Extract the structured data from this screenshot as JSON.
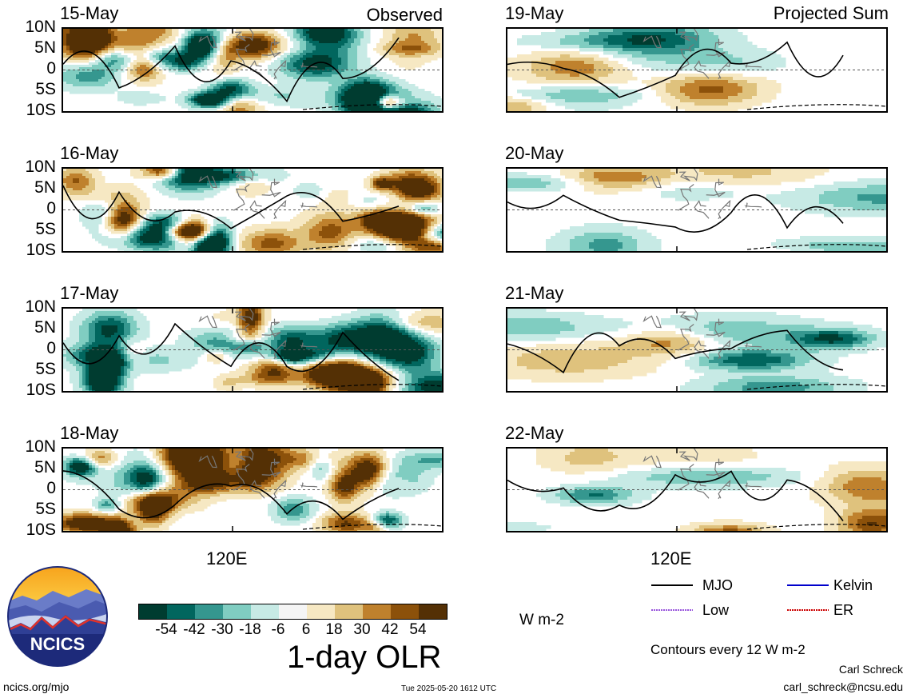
{
  "title": "1-day OLR",
  "units": "W m-2",
  "observed_label": "Observed",
  "projected_label": "Projected Sum",
  "lon_label": "120E",
  "lat_labels": [
    "10N",
    "5N",
    "0",
    "5S",
    "10S"
  ],
  "panels": [
    {
      "date": "15-May",
      "kind": "observed"
    },
    {
      "date": "16-May",
      "kind": "observed"
    },
    {
      "date": "17-May",
      "kind": "observed"
    },
    {
      "date": "18-May",
      "kind": "observed"
    },
    {
      "date": "19-May",
      "kind": "projected"
    },
    {
      "date": "20-May",
      "kind": "projected"
    },
    {
      "date": "21-May",
      "kind": "projected"
    },
    {
      "date": "22-May",
      "kind": "projected"
    }
  ],
  "colorbar": {
    "colors": [
      "#003c30",
      "#01665e",
      "#35978f",
      "#80cdc1",
      "#c7eae5",
      "#f5f5f5",
      "#f6e8c3",
      "#dfc27d",
      "#bf812d",
      "#8c510a",
      "#543005"
    ],
    "ticks": [
      "-54",
      "-42",
      "-30",
      "-18",
      "-6",
      "6",
      "18",
      "30",
      "42",
      "54"
    ]
  },
  "legend": [
    {
      "label": "MJO",
      "color": "#000000"
    },
    {
      "label": "Kelvin",
      "color": "#0000cc"
    },
    {
      "label": "Low",
      "color": "#9955dd"
    },
    {
      "label": "ER",
      "color": "#cc0000"
    }
  ],
  "contour_note": "Contours every 12 W m-2",
  "logo_text": "NCICS",
  "footer": {
    "url": "ncics.org/mjo",
    "timestamp": "Tue 2025-05-20 1612 UTC",
    "author": "Carl Schreck",
    "email": "carl_schreck@ncsu.edu"
  },
  "chart_data": {
    "type": "heatmap",
    "variable": "1-day OLR",
    "units": "W m-2",
    "y_tick_labels": [
      "10N",
      "5N",
      "0",
      "5S",
      "10S"
    ],
    "ylim": [
      -10,
      10
    ],
    "x_tick_labels": [
      "120E"
    ],
    "color_levels": [
      -54,
      -42,
      -30,
      -18,
      -6,
      6,
      18,
      30,
      42,
      54
    ],
    "contour_interval": 12,
    "panels_observed": [
      "15-May",
      "16-May",
      "17-May",
      "18-May"
    ],
    "panels_projected": [
      "19-May",
      "20-May",
      "21-May",
      "22-May"
    ]
  }
}
